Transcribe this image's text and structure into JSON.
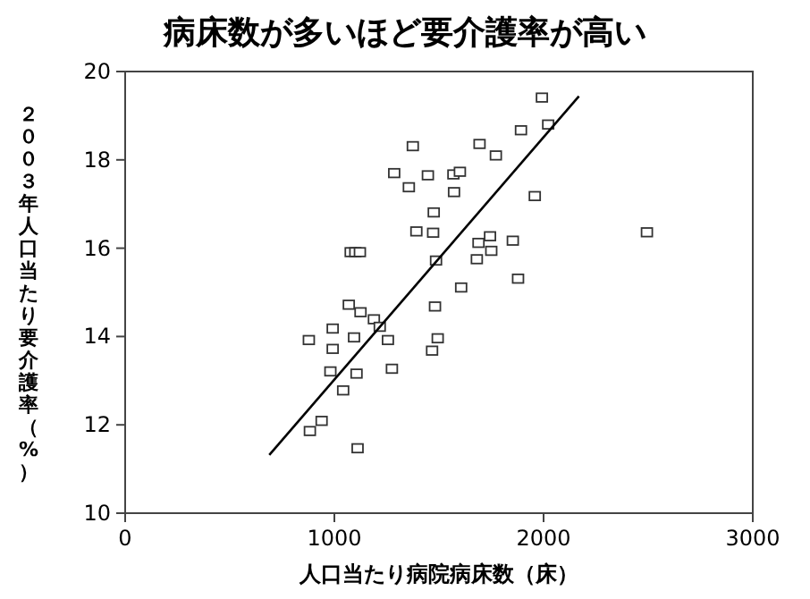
{
  "chart_data": {
    "type": "scatter",
    "title": "病床数が多いほど要介護率が高い",
    "xlabel": "人口当たり病院病床数（床）",
    "ylabel": "２００３年人口当たり要介護率（%）",
    "xlim": [
      0,
      3000
    ],
    "xticks": [
      0,
      1000,
      2000,
      3000
    ],
    "ylim": [
      10,
      20
    ],
    "yticks": [
      10,
      12,
      14,
      16,
      18,
      20
    ],
    "grid": false,
    "marker": "square",
    "series": [
      {
        "color": "#333333",
        "x": [
          1069,
          1125,
          1189,
          1217,
          878,
          992,
          1094,
          1256,
          992,
          981,
          1106,
          1275,
          1042,
          939,
          883,
          1111,
          1481,
          1494,
          1467,
          1606,
          1878,
          1681,
          1992,
          2022,
          1892,
          1694,
          1772,
          1375,
          1447,
          1569,
          1600,
          1356,
          1572,
          1958,
          1475,
          1392,
          1472,
          2494,
          1689,
          1744,
          1750,
          1486,
          1853,
          1286,
          1078,
          1100,
          1122
        ],
        "values": [
          14.72,
          14.55,
          14.39,
          14.22,
          13.92,
          14.18,
          13.98,
          13.92,
          13.72,
          13.21,
          13.16,
          13.27,
          12.78,
          12.09,
          11.86,
          11.47,
          14.68,
          13.96,
          13.68,
          15.11,
          15.31,
          15.75,
          19.41,
          18.8,
          18.67,
          18.36,
          18.1,
          18.31,
          17.65,
          17.67,
          17.73,
          17.38,
          17.27,
          17.18,
          16.81,
          16.38,
          16.35,
          16.36,
          16.12,
          16.27,
          15.94,
          15.72,
          16.17,
          17.7,
          15.91,
          15.91,
          15.91
        ]
      },
      {
        "type": "line",
        "color": "#000000",
        "marker": "none",
        "x": [
          689,
          2169
        ],
        "values": [
          11.32,
          19.44
        ]
      }
    ]
  }
}
